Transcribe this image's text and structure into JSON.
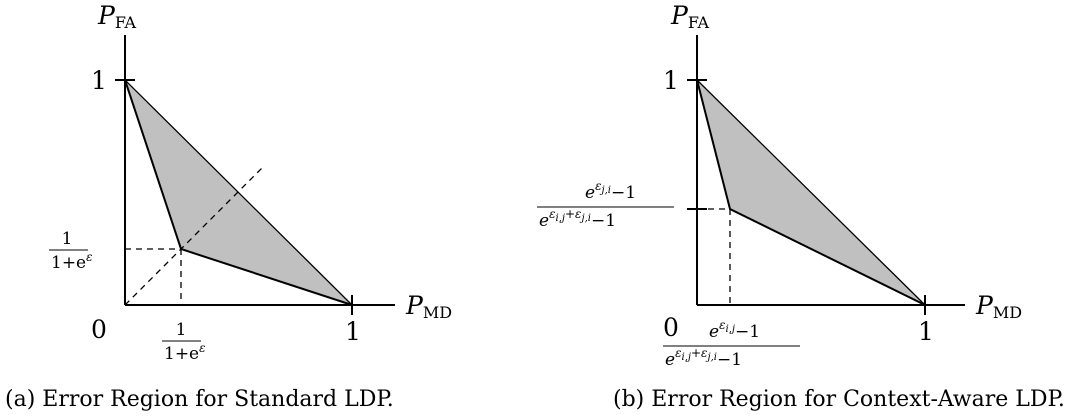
{
  "figure_a": {
    "axis_y": {
      "main": "P",
      "sub": "FA"
    },
    "axis_x": {
      "main": "P",
      "sub": "MD"
    },
    "tick_origin": "0",
    "tick_y_one": "1",
    "tick_x_one": "1",
    "frac_num": "1",
    "frac_den": "1+e",
    "frac_exp": "ε",
    "caption": "(a) Error Region for Standard LDP."
  },
  "figure_b": {
    "axis_y": {
      "main": "P",
      "sub": "FA"
    },
    "axis_x": {
      "main": "P",
      "sub": "MD"
    },
    "tick_origin": "0",
    "tick_y_one": "1",
    "tick_x_one": "1",
    "y_frac": {
      "num_base": "e",
      "num_exp": "ε",
      "num_exp_sub": "j,i",
      "num_tail": "−1",
      "den_base": "e",
      "den_exp": "ε",
      "den_exp_sub1": "i,j",
      "den_exp_plus": "+ε",
      "den_exp_sub2": "j,i",
      "den_tail": "−1"
    },
    "x_frac": {
      "num_base": "e",
      "num_exp": "ε",
      "num_exp_sub": "i,j",
      "num_tail": "−1",
      "den_base": "e",
      "den_exp": "ε",
      "den_exp_sub1": "i,j",
      "den_exp_plus": "+ε",
      "den_exp_sub2": "j,i",
      "den_tail": "−1"
    },
    "caption": "(b) Error Region for Context-Aware LDP."
  },
  "colors": {
    "region_fill": "#c0c0c0",
    "stroke": "#000000"
  }
}
